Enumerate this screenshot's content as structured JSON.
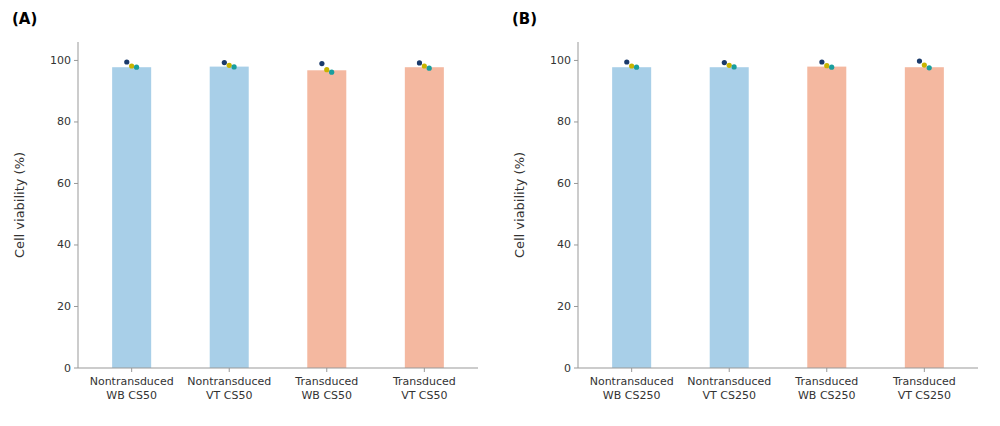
{
  "chart_data": [
    {
      "type": "bar",
      "title": "(A)",
      "categories": [
        "Nontransduced\nWB CS50",
        "Nontransduced\nVT CS50",
        "Transduced\nWB CS50",
        "Transduced\nVT CS50"
      ],
      "ylabel": "Cell viability (%)",
      "ylim": [
        0,
        106
      ],
      "yticks": [
        0,
        20,
        40,
        60,
        80,
        100
      ],
      "grid": false,
      "series": [
        {
          "type": "bar",
          "colors": [
            "#a8cfe8",
            "#a8cfe8",
            "#f4b8a0",
            "#f4b8a0"
          ],
          "values": [
            97.8,
            98.0,
            96.8,
            97.8
          ]
        },
        {
          "type": "scatter",
          "color": "#1a3a6b",
          "values": [
            99.5,
            99.3,
            99.0,
            99.2
          ]
        },
        {
          "type": "scatter",
          "color": "#c8b400",
          "values": [
            98.2,
            98.4,
            97.0,
            98.2
          ]
        },
        {
          "type": "scatter",
          "color": "#1a9e9e",
          "values": [
            97.8,
            97.9,
            96.2,
            97.5
          ]
        }
      ]
    },
    {
      "type": "bar",
      "title": "(B)",
      "categories": [
        "Nontransduced\nWB CS250",
        "Nontransduced\nVT CS250",
        "Transduced\nWB CS250",
        "Transduced\nVT CS250"
      ],
      "ylabel": "Cell viability (%)",
      "ylim": [
        0,
        106
      ],
      "yticks": [
        0,
        20,
        40,
        60,
        80,
        100
      ],
      "grid": false,
      "series": [
        {
          "type": "bar",
          "colors": [
            "#a8cfe8",
            "#a8cfe8",
            "#f4b8a0",
            "#f4b8a0"
          ],
          "values": [
            97.8,
            97.8,
            98.0,
            97.8
          ]
        },
        {
          "type": "scatter",
          "color": "#1a3a6b",
          "values": [
            99.5,
            99.3,
            99.5,
            99.8
          ]
        },
        {
          "type": "scatter",
          "color": "#c8b400",
          "values": [
            98.2,
            98.4,
            98.3,
            98.5
          ]
        },
        {
          "type": "scatter",
          "color": "#1a9e9e",
          "values": [
            97.8,
            97.9,
            97.8,
            97.6
          ]
        }
      ]
    }
  ]
}
